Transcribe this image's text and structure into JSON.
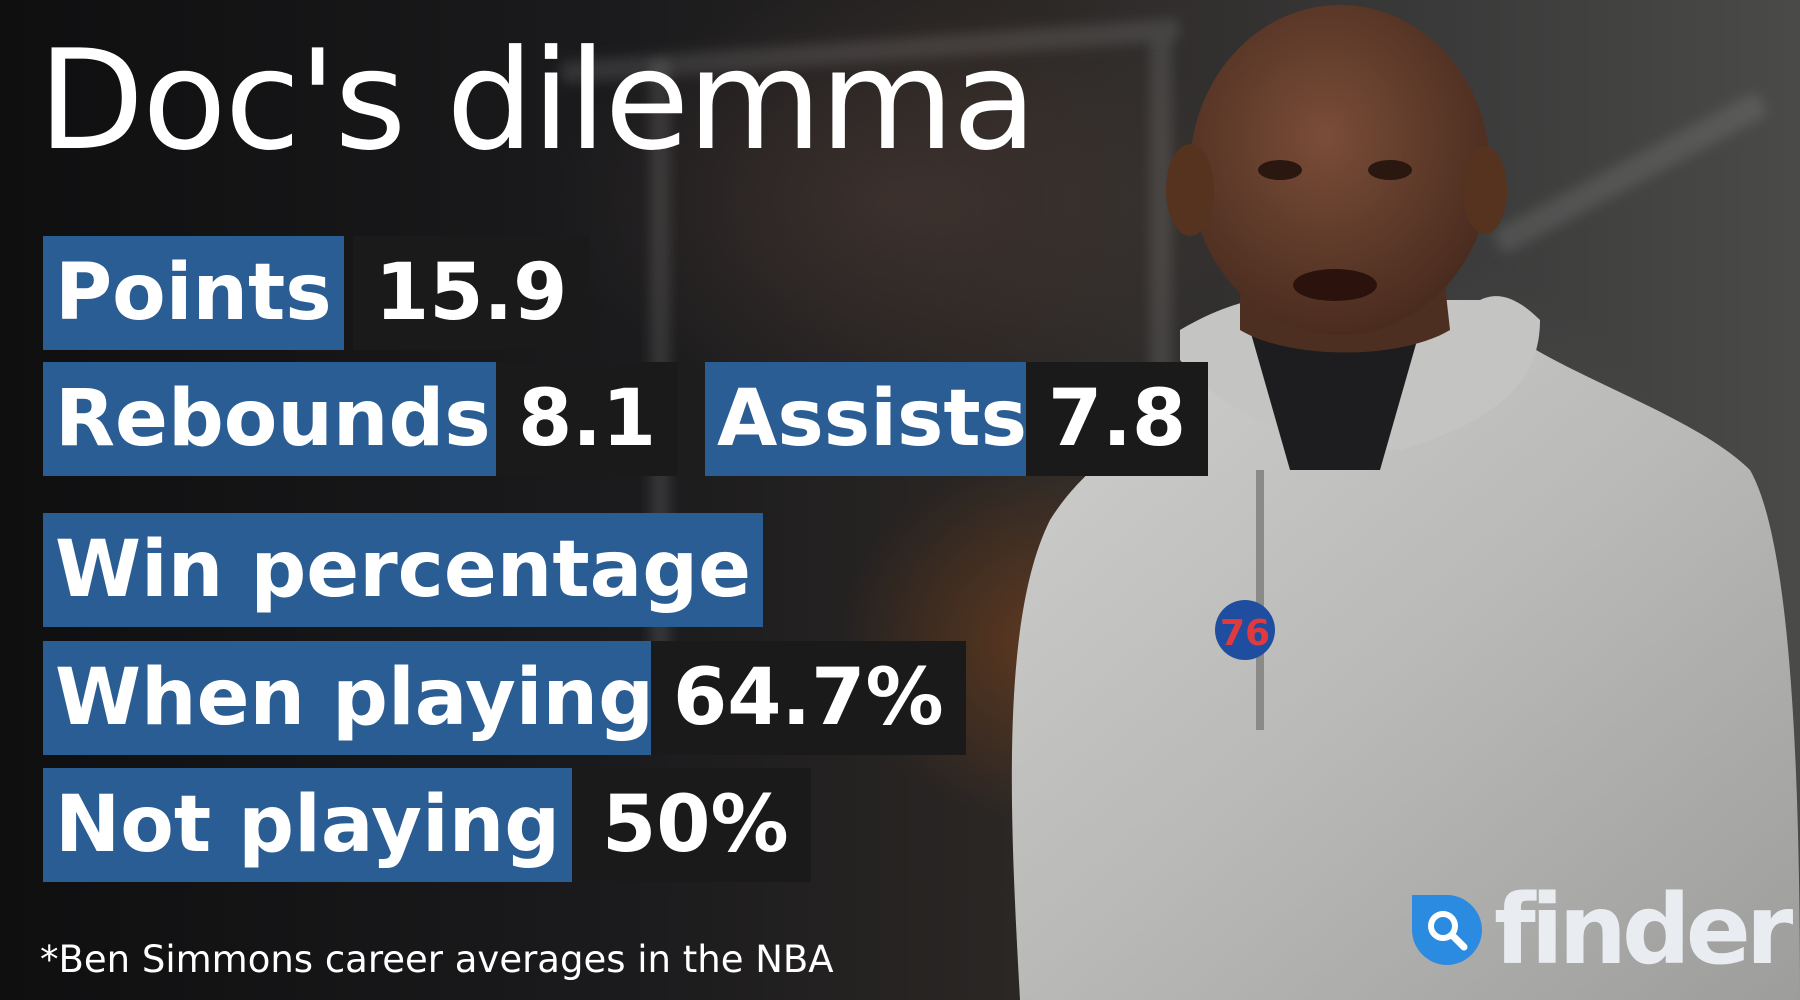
{
  "title": "Doc's dilemma",
  "stats": {
    "points": {
      "label": "Points",
      "value": "15.9"
    },
    "rebounds": {
      "label": "Rebounds",
      "value": "8.1"
    },
    "assists": {
      "label": "Assists",
      "value": "7.8"
    }
  },
  "win_percentage": {
    "heading": "Win percentage",
    "when_playing": {
      "label": "When playing",
      "value": "64.7%"
    },
    "not_playing": {
      "label": "Not playing",
      "value": "50%"
    }
  },
  "footnote": "*Ben Simmons career averages in the NBA",
  "logo": {
    "wordmark": "finder",
    "icon": "search-icon"
  },
  "photo": {
    "badge_text": "76"
  },
  "colors": {
    "label_bg": "#2a5d93",
    "value_bg": "#1a1a1a",
    "logo_blue": "#2b8be0",
    "text": "#ffffff"
  }
}
